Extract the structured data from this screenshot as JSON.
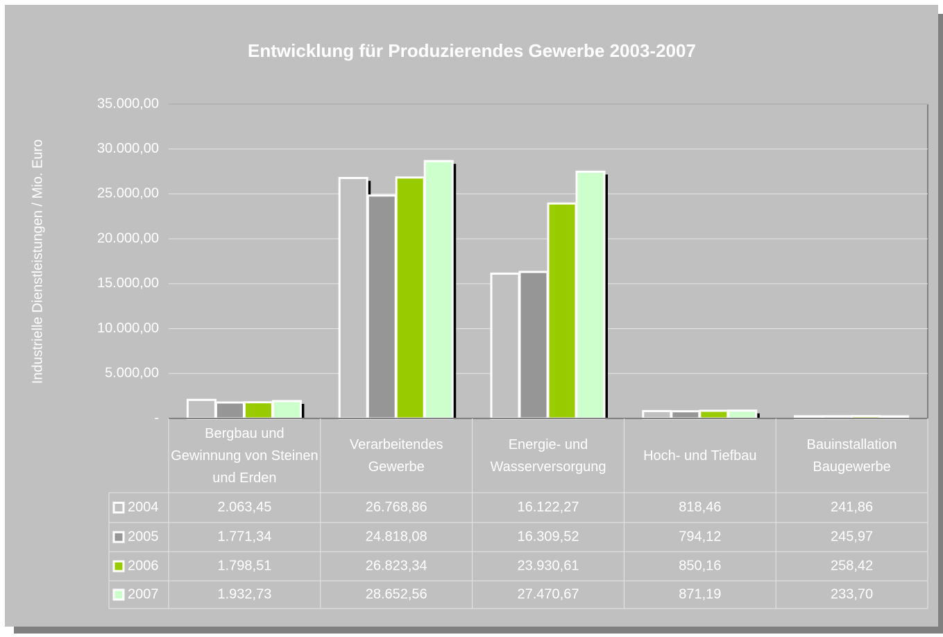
{
  "chart_data": {
    "type": "bar",
    "title": "Entwicklung für Produzierendes Gewerbe 2003-2007",
    "y_label": "Industrielle Dienstleistungen / Mio. Euro",
    "categories": [
      "Bergbau und Gewinnung von Steinen und Erden",
      "Verarbeitendes Gewerbe",
      "Energie- und Wasserversorgung",
      "Hoch- und Tiefbau",
      "Bauinstallation Baugewerbe"
    ],
    "series": [
      {
        "name": "2004",
        "color": "#c0c0c0",
        "values": [
          2063.45,
          26768.86,
          16122.27,
          818.46,
          241.86
        ],
        "value_labels": [
          "2.063,45",
          "26.768,86",
          "16.122,27",
          "818,46",
          "241,86"
        ]
      },
      {
        "name": "2005",
        "color": "#969696",
        "values": [
          1771.34,
          24818.08,
          16309.52,
          794.12,
          245.97
        ],
        "value_labels": [
          "1.771,34",
          "24.818,08",
          "16.309,52",
          "794,12",
          "245,97"
        ]
      },
      {
        "name": "2006",
        "color": "#99cc00",
        "values": [
          1798.51,
          26823.34,
          23930.61,
          850.16,
          258.42
        ],
        "value_labels": [
          "1.798,51",
          "26.823,34",
          "23.930,61",
          "850,16",
          "258,42"
        ]
      },
      {
        "name": "2007",
        "color": "#ccffcc",
        "values": [
          1932.73,
          28652.56,
          27470.67,
          871.19,
          233.7
        ],
        "value_labels": [
          "1.932,73",
          "28.652,56",
          "27.470,67",
          "871,19",
          "233,70"
        ]
      }
    ],
    "ylim": [
      0,
      35000
    ],
    "yticks": [
      {
        "value": 0,
        "label": "-"
      },
      {
        "value": 5000,
        "label": "5.000,00"
      },
      {
        "value": 10000,
        "label": "10.000,00"
      },
      {
        "value": 15000,
        "label": "15.000,00"
      },
      {
        "value": 20000,
        "label": "20.000,00"
      },
      {
        "value": 25000,
        "label": "25.000,00"
      },
      {
        "value": 30000,
        "label": "30.000,00"
      },
      {
        "value": 35000,
        "label": "35.000,00"
      }
    ],
    "grid": true
  }
}
